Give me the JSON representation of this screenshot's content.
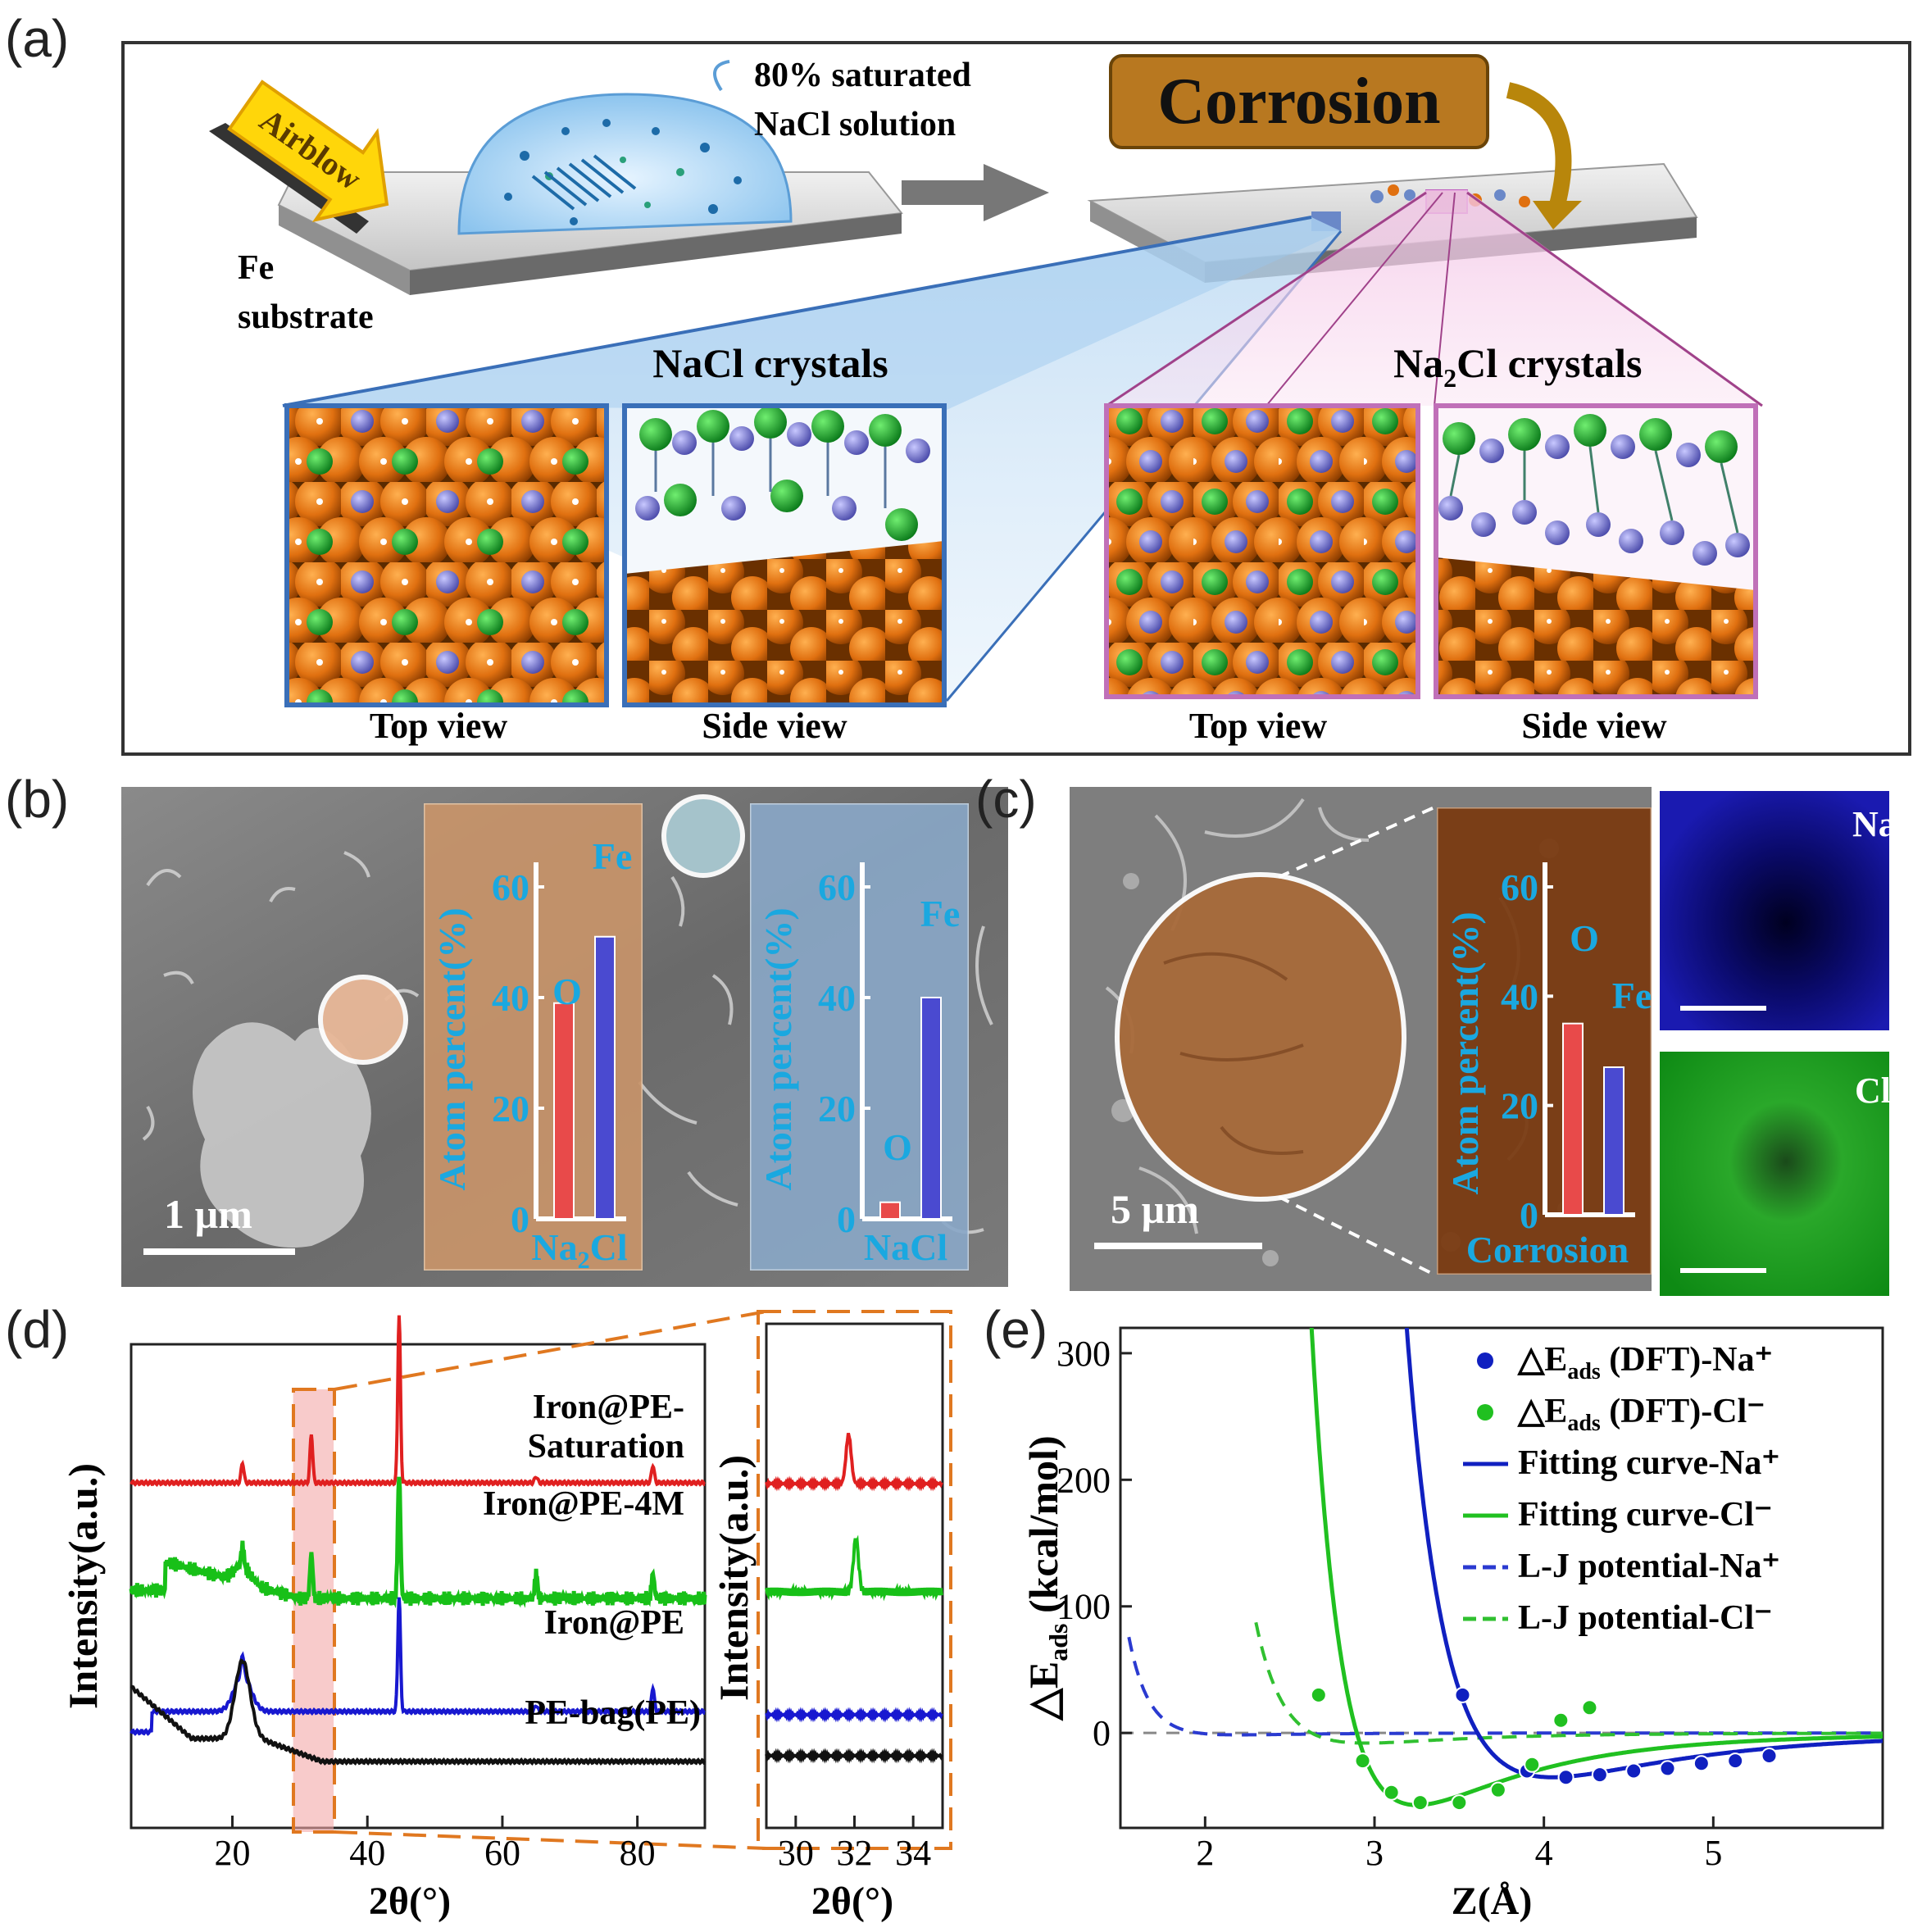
{
  "panels": {
    "a": {
      "label": "(a)",
      "airblow": "Airblow",
      "solution": [
        "80% saturated",
        "NaCl solution"
      ],
      "substrate": [
        "Fe",
        "substrate"
      ],
      "corrosion": "Corrosion",
      "nacl_title": "NaCl crystals",
      "na2cl_title_main": "Na",
      "na2cl_title_sub": "2",
      "na2cl_title_rest": "Cl crystals",
      "views": [
        "Top view",
        "Side view",
        "Top view",
        "Side view"
      ]
    },
    "b": {
      "label": "(b)",
      "scale": "1 µm",
      "ylabel": "Atom percent(%)",
      "na2cl_box": {
        "name_main": "Na",
        "name_sub": "2",
        "name_rest": "Cl",
        "o_label": "O",
        "fe_label": "Fe"
      },
      "nacl_box": {
        "name": "NaCl",
        "o_label": "O",
        "fe_label": "Fe"
      }
    },
    "c": {
      "label": "(c)",
      "scale": "5 µm",
      "ylabel": "Atom percent(%)",
      "box": {
        "name": "Corrosion",
        "o_label": "O",
        "fe_label": "Fe"
      },
      "map_na": "Na",
      "map_cl": "Cl"
    },
    "d": {
      "label": "(d)",
      "ylabel": "Intensity(a.u.)",
      "xlabel": "2θ(°)",
      "traces": [
        "Iron@PE-",
        "Saturation",
        "Iron@PE-4M",
        "Iron@PE",
        "PE-bag(PE)"
      ]
    },
    "e": {
      "label": "(e)",
      "ylabel_main": "△E",
      "ylabel_sub": "ads",
      "ylabel_rest": " (kcal/mol)",
      "xlabel": "Z(Å)",
      "legend": [
        {
          "pre": "△E",
          "sub": "ads",
          "post": " (DFT)-Na⁺"
        },
        {
          "pre": "△E",
          "sub": "ads",
          "post": " (DFT)-Cl⁻"
        },
        {
          "pre": "Fitting curve-Na⁺",
          "sub": "",
          "post": ""
        },
        {
          "pre": "Fitting curve-Cl⁻",
          "sub": "",
          "post": ""
        },
        {
          "pre": "L-J potential-Na⁺",
          "sub": "",
          "post": ""
        },
        {
          "pre": "L-J potential-Cl⁻",
          "sub": "",
          "post": ""
        }
      ]
    }
  },
  "chart_data": [
    {
      "type": "bar",
      "panel": "b-left",
      "categories": [
        "O",
        "Fe"
      ],
      "values": [
        39,
        51
      ],
      "ylabel": "Atom percent(%)",
      "xlabel": "Na2Cl",
      "ylim": [
        0,
        60
      ],
      "yticks": [
        "0",
        "20",
        "40",
        "60"
      ],
      "colors": [
        "#e84a4a",
        "#4a4ad0"
      ]
    },
    {
      "type": "bar",
      "panel": "b-right",
      "categories": [
        "O",
        "Fe"
      ],
      "values": [
        3,
        40
      ],
      "ylabel": "Atom percent(%)",
      "xlabel": "NaCl",
      "ylim": [
        0,
        60
      ],
      "yticks": [
        "0",
        "20",
        "40",
        "60"
      ],
      "colors": [
        "#e84a4a",
        "#4a4ad0"
      ]
    },
    {
      "type": "bar",
      "panel": "c",
      "categories": [
        "O",
        "Fe"
      ],
      "values": [
        35,
        27
      ],
      "ylabel": "Atom percent(%)",
      "xlabel": "Corrosion",
      "ylim": [
        0,
        60
      ],
      "yticks": [
        "0",
        "20",
        "40",
        "60"
      ],
      "colors": [
        "#e84a4a",
        "#4a4ad0"
      ]
    },
    {
      "type": "line",
      "panel": "d-main",
      "xlabel": "2θ(°)",
      "ylabel": "Intensity(a.u.)",
      "xlim": [
        5,
        90
      ],
      "xticks": [
        "20",
        "40",
        "60",
        "80"
      ],
      "peaks": [
        21.5,
        31.7,
        44.7,
        65,
        82.3
      ],
      "series": [
        {
          "name": "Iron@PE-Saturation",
          "color": "#e02020"
        },
        {
          "name": "Iron@PE-4M",
          "color": "#18c018"
        },
        {
          "name": "Iron@PE",
          "color": "#1818d0"
        },
        {
          "name": "PE-bag(PE)",
          "color": "#111111"
        }
      ]
    },
    {
      "type": "line",
      "panel": "d-zoom",
      "xlabel": "2θ(°)",
      "ylabel": "Intensity(a.u.)",
      "xlim": [
        29,
        35
      ],
      "xticks": [
        "30",
        "32",
        "34"
      ]
    },
    {
      "type": "line",
      "panel": "e",
      "xlabel": "Z(Å)",
      "ylabel": "△Eads (kcal/mol)",
      "xlim": [
        1.5,
        6.0
      ],
      "ylim": [
        -75,
        320
      ],
      "xticks": [
        "2",
        "3",
        "4",
        "5"
      ],
      "yticks": [
        "0",
        "100",
        "200",
        "300"
      ],
      "series": [
        {
          "name": "△Eads (DFT)-Na⁺",
          "color": "#1020c0",
          "x": [
            3.52,
            3.9,
            4.13,
            4.33,
            4.53,
            4.73,
            4.93,
            5.13,
            5.33
          ],
          "y": [
            30,
            -30,
            -35,
            -33,
            -30,
            -28,
            -24,
            -22,
            -18
          ]
        },
        {
          "name": "△Eads (DFT)-Cl⁻",
          "color": "#20c020",
          "x": [
            2.67,
            2.93,
            3.1,
            3.27,
            3.5,
            3.73,
            3.93,
            4.1,
            4.27
          ],
          "y": [
            30,
            -22,
            -47,
            -55,
            -55,
            -45,
            -25,
            10,
            20
          ]
        }
      ]
    }
  ]
}
